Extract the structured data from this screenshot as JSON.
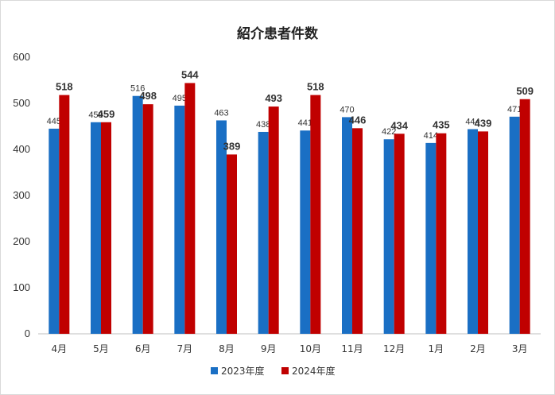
{
  "chart_data": {
    "type": "bar",
    "title": "紹介患者件数",
    "categories": [
      "4月",
      "5月",
      "6月",
      "7月",
      "8月",
      "9月",
      "10月",
      "11月",
      "12月",
      "1月",
      "2月",
      "3月"
    ],
    "series": [
      {
        "name": "2023年度",
        "color": "#1a6fc4",
        "values": [
          445,
          459,
          516,
          495,
          463,
          438,
          441,
          470,
          422,
          414,
          444,
          471
        ]
      },
      {
        "name": "2024年度",
        "color": "#c00000",
        "values": [
          518,
          459,
          498,
          544,
          389,
          493,
          518,
          446,
          434,
          435,
          439,
          509
        ]
      }
    ],
    "ylim": [
      0,
      600
    ],
    "yticks": [
      0,
      100,
      200,
      300,
      400,
      500,
      600
    ],
    "grid": false,
    "legend": "bottom",
    "data_labels": true
  }
}
